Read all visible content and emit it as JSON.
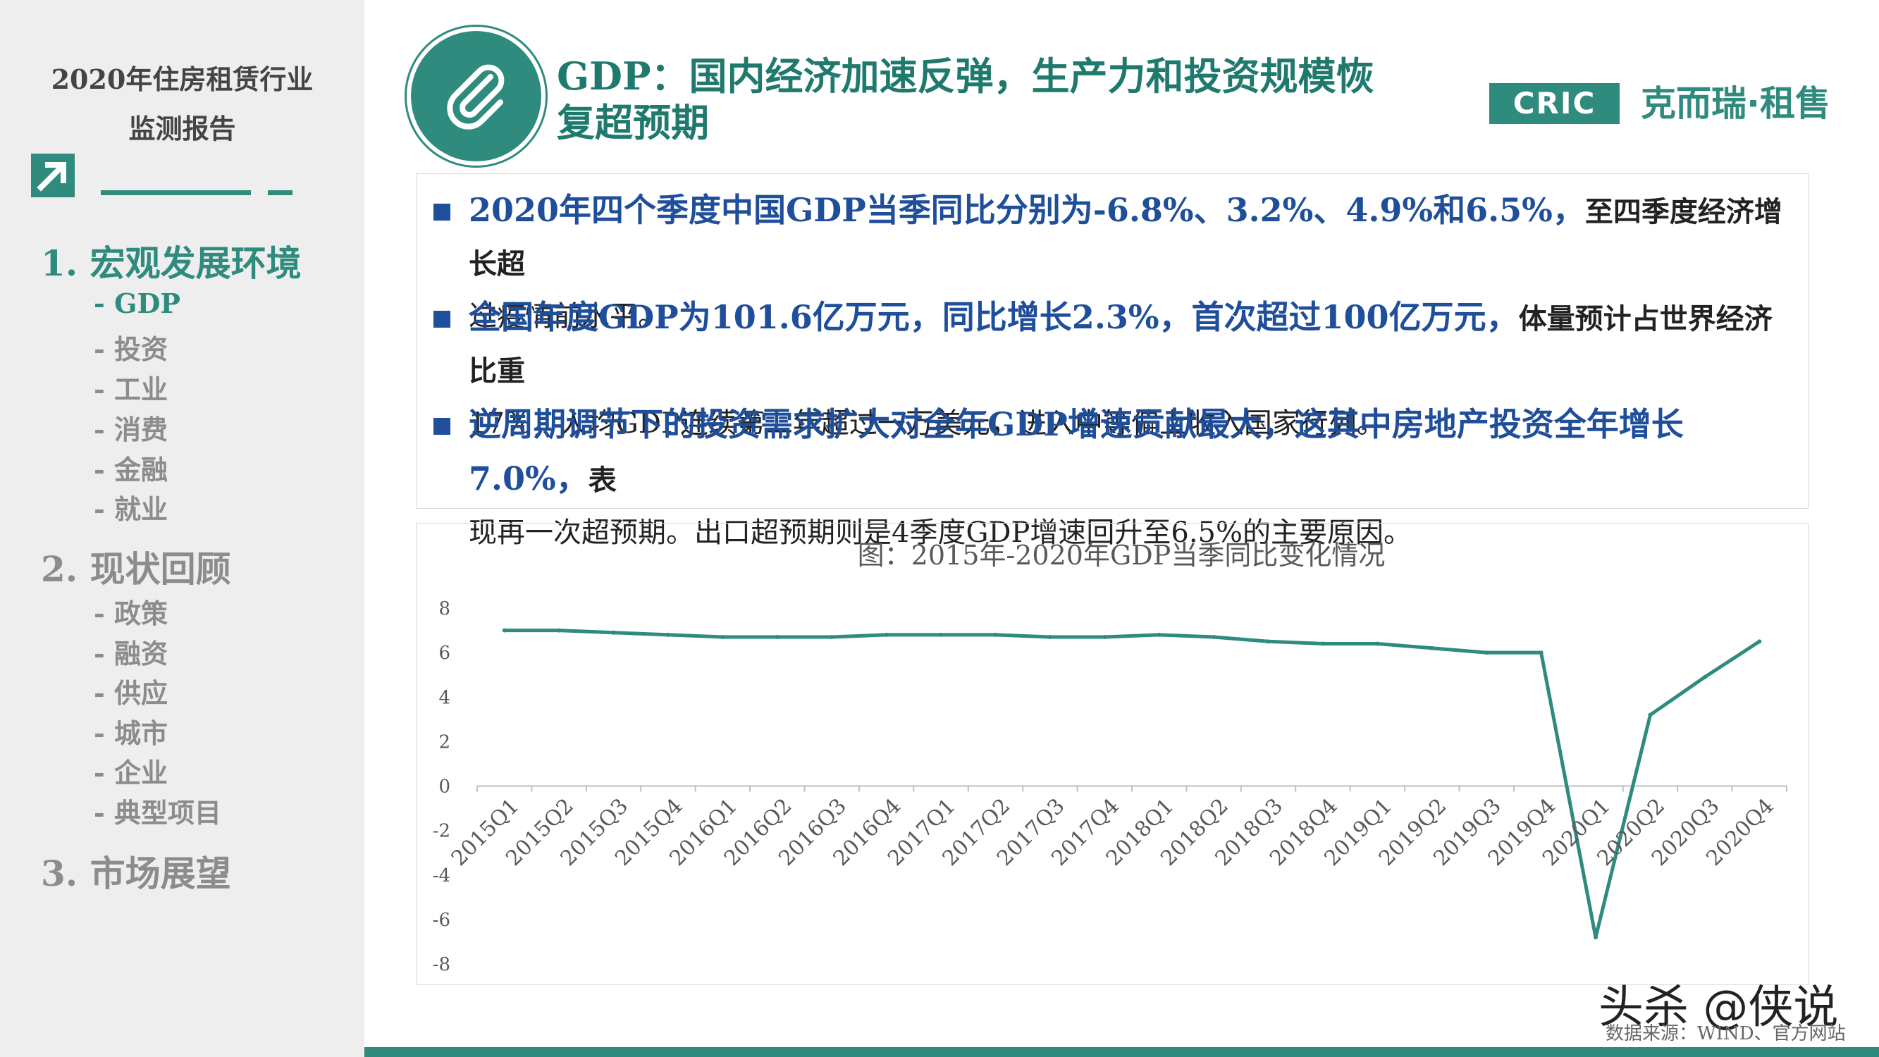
{
  "sidebar": {
    "report_title_line1": "2020年住房租赁行业",
    "report_title_line2": "监测报告",
    "sections": [
      {
        "label": "1.  宏观发展环境",
        "items": [
          "- GDP",
          "- 投资",
          "- 工业",
          "- 消费",
          "- 金融",
          "- 就业"
        ]
      },
      {
        "label": "2.  现状回顾",
        "items": [
          "- 政策",
          "- 融资",
          "- 供应",
          "- 城市",
          "- 企业",
          "- 典型项目"
        ]
      },
      {
        "label": "3.  市场展望",
        "items": []
      }
    ],
    "active_section": "1.  宏观发展环境",
    "active_item": "- GDP"
  },
  "header": {
    "heading_line1": "GDP：国内经济加速反弹，生产力和投资规模恢",
    "heading_line2": "复超预期",
    "badge": "CRIC",
    "brand": "克而瑞·租售",
    "icon": "paperclip-icon"
  },
  "bullets": [
    {
      "highlight": "2020年四个季度中国GDP当季同比分别为-6.8%、3.2%、4.9%和6.5%，",
      "rest_line1": "至四季度经济增长超",
      "rest_line2": "过疫情前水平。"
    },
    {
      "highlight": "全国年度GDP为101.6亿万元，同比增长2.3%，首次超过100亿万元，",
      "rest_line1": "体量预计占世界经济比重",
      "rest_line2": "17%，人均GDP连续第二年超过一万美元，进入中等偏上收入国家行列。"
    },
    {
      "highlight": "逆周期调节下的投资需求扩大对全年GDP增速贡献最大，这其中房地产投资全年增长7.0%，",
      "rest_line1": "表",
      "rest_line2": "现再一次超预期。出口超预期则是4季度GDP增速回升至6.5%的主要原因。"
    }
  ],
  "chart_data": {
    "type": "line",
    "title": "图：2015年-2020年GDP当季同比变化情况",
    "xlabel": "",
    "ylabel": "",
    "ylim": [
      -8,
      8
    ],
    "yticks": [
      -8,
      -6,
      -4,
      -2,
      0,
      2,
      4,
      6,
      8
    ],
    "grid": false,
    "legend": "none",
    "color": "#2e8b7e",
    "categories": [
      "2015Q1",
      "2015Q2",
      "2015Q3",
      "2015Q4",
      "2016Q1",
      "2016Q2",
      "2016Q3",
      "2016Q4",
      "2017Q1",
      "2017Q2",
      "2017Q3",
      "2017Q4",
      "2018Q1",
      "2018Q2",
      "2018Q3",
      "2018Q4",
      "2019Q1",
      "2019Q2",
      "2019Q3",
      "2019Q4",
      "2020Q1",
      "2020Q2",
      "2020Q3",
      "2020Q4"
    ],
    "series": [
      {
        "values": [
          7.0,
          7.0,
          6.9,
          6.8,
          6.7,
          6.7,
          6.7,
          6.8,
          6.8,
          6.8,
          6.7,
          6.7,
          6.8,
          6.7,
          6.5,
          6.4,
          6.4,
          6.2,
          6.0,
          6.0,
          -6.8,
          3.2,
          4.9,
          6.5
        ]
      }
    ]
  },
  "footer": {
    "watermark": "头杀 @侠说",
    "source": "数据来源：WIND、官方网站"
  }
}
